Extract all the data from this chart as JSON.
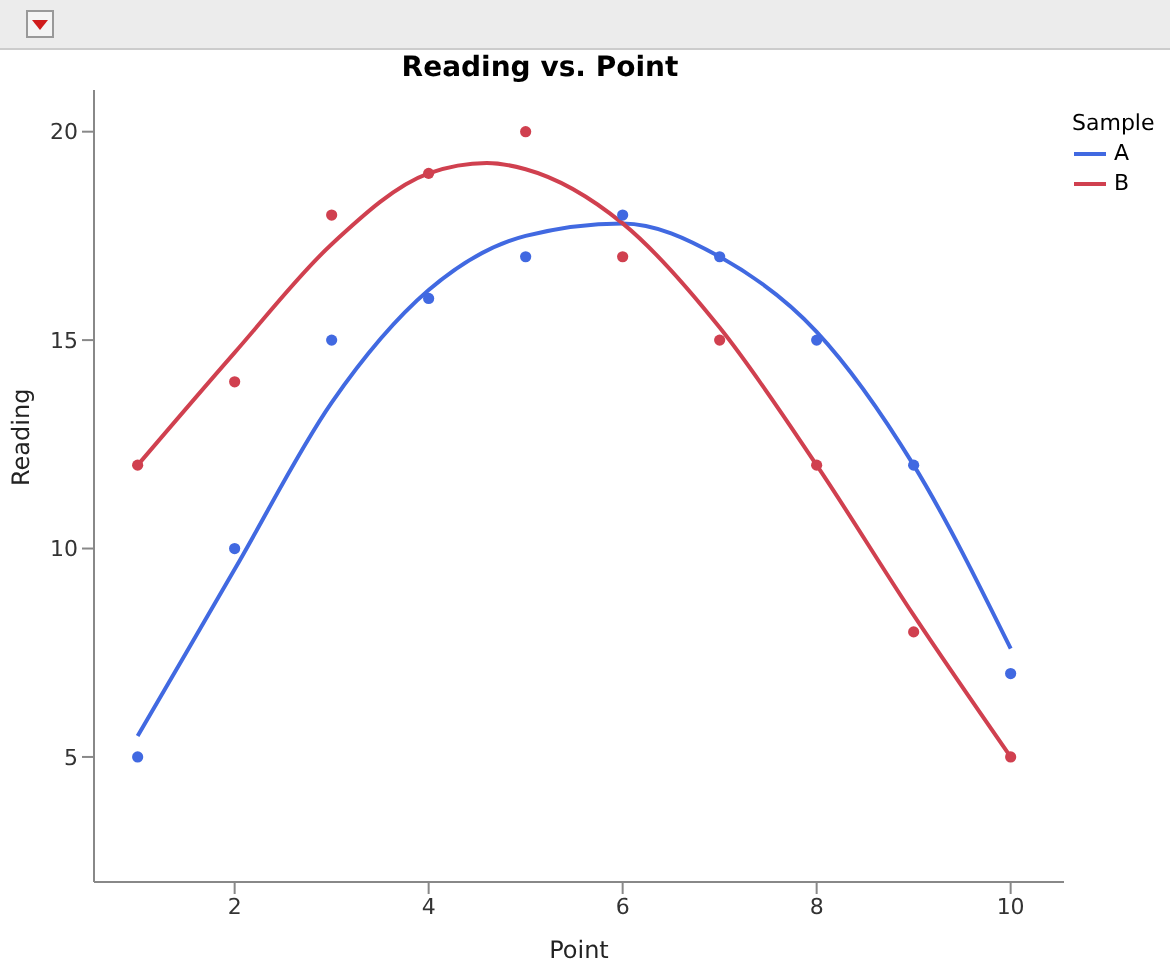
{
  "chart_data": {
    "type": "scatter",
    "title": "Reading vs. Point",
    "xlabel": "Point",
    "ylabel": "Reading",
    "legend_title": "Sample",
    "legend": "right",
    "grid": false,
    "x": [
      1,
      2,
      3,
      4,
      5,
      6,
      7,
      8,
      9,
      10
    ],
    "series": [
      {
        "color": "#4169e1",
        "marker": "circle",
        "values": [
          5,
          10,
          15,
          16,
          17,
          18,
          17,
          15,
          12,
          7
        ]
      },
      {
        "color": "#d0404f",
        "marker": "circle",
        "values": [
          12,
          14,
          18,
          19,
          20,
          17,
          15,
          12,
          8,
          5
        ]
      },
      {
        "type": "line",
        "name": "A",
        "color": "#4169e1",
        "marker": "none",
        "line_style": "solid",
        "x": [
          1,
          2,
          3,
          4,
          5,
          6,
          7,
          8,
          9,
          10
        ],
        "values": [
          5.5,
          9.5,
          13.5,
          16.2,
          17.5,
          17.8,
          17.0,
          15.2,
          12.0,
          7.6
        ]
      },
      {
        "type": "line",
        "name": "B",
        "color": "#d0404f",
        "marker": "none",
        "line_style": "solid",
        "x": [
          1,
          2,
          3,
          4,
          4.6,
          5,
          6,
          7,
          8,
          9,
          10
        ],
        "values": [
          12.0,
          14.7,
          17.3,
          19.0,
          19.25,
          19.1,
          17.8,
          15.3,
          12.0,
          8.4,
          5.0
        ]
      }
    ],
    "xlim": [
      0.55,
      10.55
    ],
    "xticks": [
      2,
      4,
      6,
      8,
      10
    ],
    "ylim": [
      2,
      21
    ],
    "yticks": [
      5,
      10,
      15,
      20
    ]
  }
}
